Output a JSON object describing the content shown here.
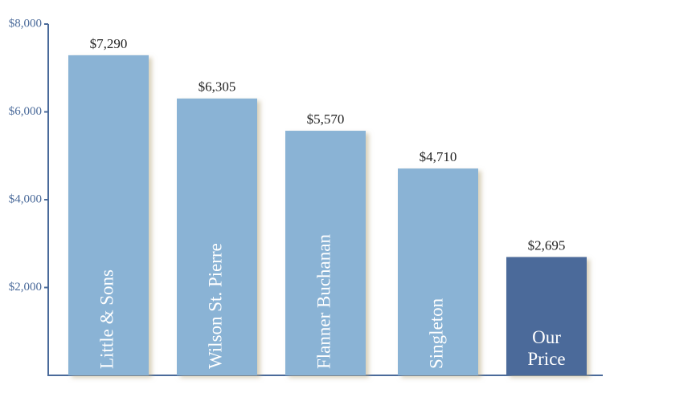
{
  "chart_data": {
    "type": "bar",
    "categories": [
      "Little & Sons",
      "Wilson St. Pierre",
      "Flanner Buchanan",
      "Singleton",
      "Our Price"
    ],
    "values": [
      7290,
      6305,
      5570,
      4710,
      2695
    ],
    "value_labels": [
      "$7,290",
      "$6,305",
      "$5,570",
      "$4,710",
      "$2,695"
    ],
    "colors": [
      "#8ab3d5",
      "#8ab3d5",
      "#8ab3d5",
      "#8ab3d5",
      "#4c6a9a"
    ],
    "ylim": [
      0,
      8000
    ],
    "yticks": [
      {
        "value": 2000,
        "label": "$2,000"
      },
      {
        "value": 4000,
        "label": "$4,000"
      },
      {
        "value": 6000,
        "label": "$6,000"
      },
      {
        "value": 8000,
        "label": "$8,000"
      }
    ],
    "grid": false
  }
}
